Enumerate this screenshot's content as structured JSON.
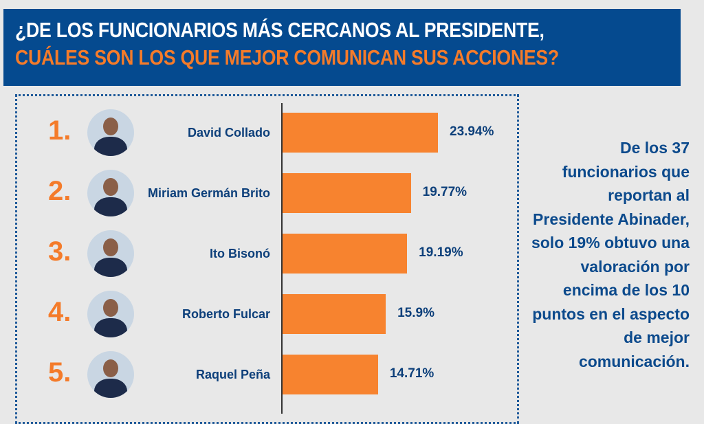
{
  "header": {
    "line1": "¿DE LOS FUNCIONARIOS MÁS CERCANOS AL PRESIDENTE,",
    "line2": "CUÁLES SON LOS QUE MEJOR COMUNICAN SUS ACCIONES?"
  },
  "side_note": "De los 37 funcionarios que reportan al Presidente Abinader, solo 19% obtuvo una valoración por encima de los 10 puntos en el aspecto de mejor comunicación.",
  "colors": {
    "header_bg": "#054a8f",
    "accent": "#f47b2a",
    "bar": "#f7832f",
    "text": "#0c3f7a"
  },
  "chart_data": {
    "type": "bar",
    "orientation": "horizontal",
    "categories": [
      "David Collado",
      "Miriam Germán Brito",
      "Ito Bisonó",
      "Roberto Fulcar",
      "Raquel Peña"
    ],
    "ranks": [
      "1.",
      "2.",
      "3.",
      "4.",
      "5."
    ],
    "values": [
      23.94,
      19.77,
      19.19,
      15.9,
      14.71
    ],
    "labels": [
      "23.94%",
      "19.77%",
      "19.19%",
      "15.9%",
      "14.71%"
    ],
    "xlim": [
      0,
      24
    ]
  }
}
